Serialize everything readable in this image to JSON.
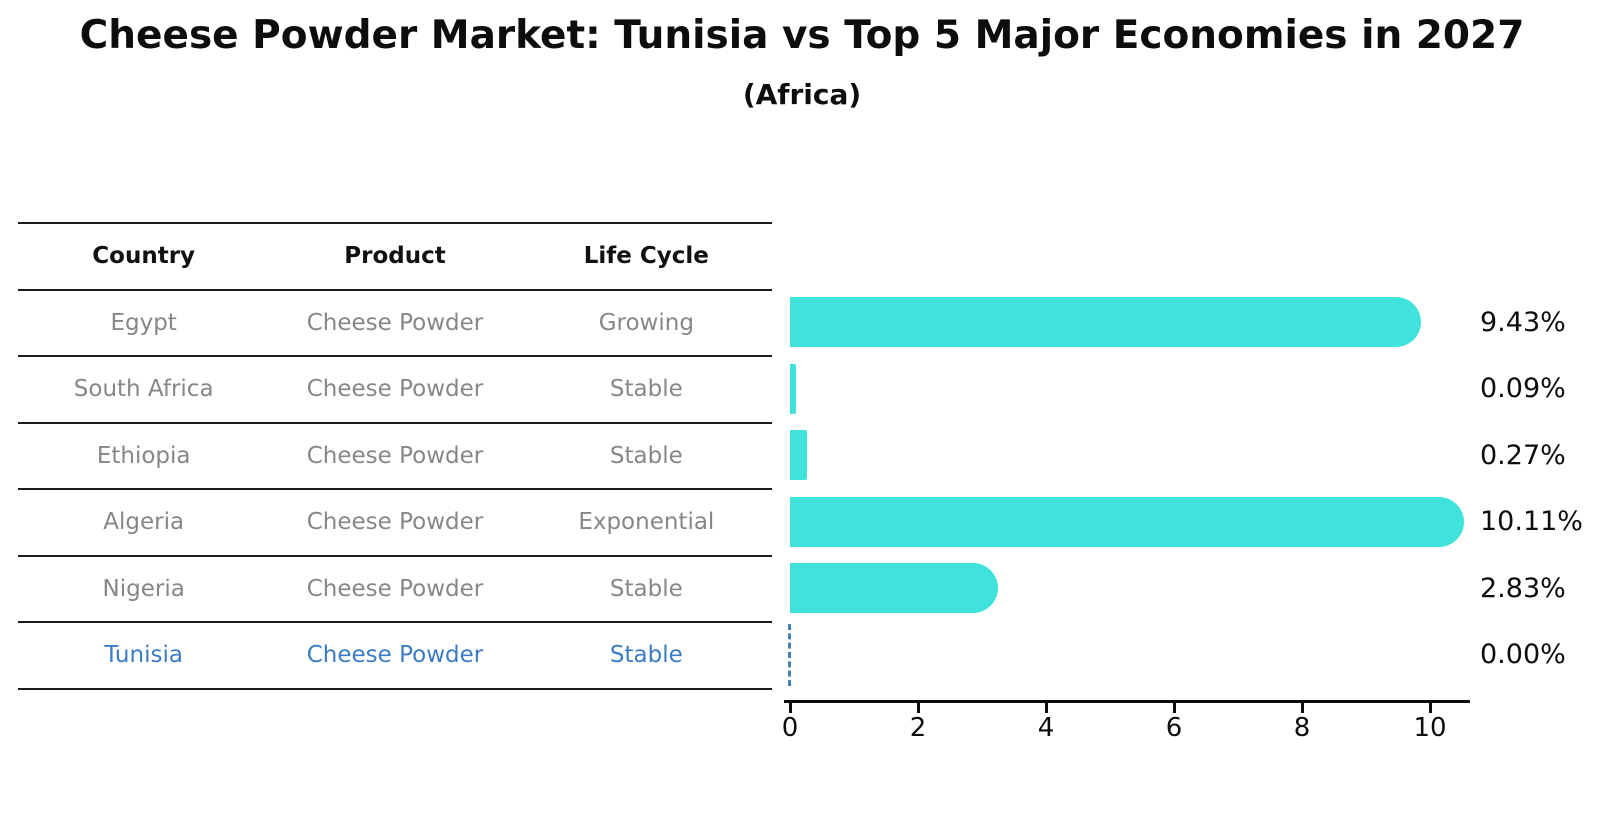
{
  "title": "Cheese Powder Market: Tunisia vs Top 5 Major Economies in 2027",
  "subtitle": "(Africa)",
  "chart_data": {
    "type": "bar",
    "orientation": "horizontal",
    "title": "Cheese Powder Market: Tunisia vs Top 5 Major Economies in 2027",
    "subtitle": "(Africa)",
    "table_columns": [
      "Country",
      "Product",
      "Life Cycle"
    ],
    "rows": [
      {
        "country": "Egypt",
        "product": "Cheese Powder",
        "life_cycle": "Growing",
        "value": 9.43,
        "value_label": "9.43%",
        "highlight": false
      },
      {
        "country": "South Africa",
        "product": "Cheese Powder",
        "life_cycle": "Stable",
        "value": 0.09,
        "value_label": "0.09%",
        "highlight": false
      },
      {
        "country": "Ethiopia",
        "product": "Cheese Powder",
        "life_cycle": "Stable",
        "value": 0.27,
        "value_label": "0.27%",
        "highlight": false
      },
      {
        "country": "Algeria",
        "product": "Cheese Powder",
        "life_cycle": "Exponential",
        "value": 10.11,
        "value_label": "10.11%",
        "highlight": false
      },
      {
        "country": "Nigeria",
        "product": "Cheese Powder",
        "life_cycle": "Stable",
        "value": 2.83,
        "value_label": "2.83%",
        "highlight": false
      },
      {
        "country": "Tunisia",
        "product": "Cheese Powder",
        "life_cycle": "Stable",
        "value": 0.0,
        "value_label": "0.00%",
        "highlight": true
      }
    ],
    "x_ticks": [
      0,
      2,
      4,
      6,
      8,
      10
    ],
    "x_range": [
      0,
      10.6
    ],
    "grid": false,
    "legend": false,
    "colors": {
      "bar": "#40E2DC",
      "highlight_text": "#3B7CC4",
      "zero_marker": "#4682B4",
      "row_text": "#878787",
      "header_text": "#111111",
      "axis": "#0d0d0d",
      "value_text": "#0d0d0d"
    }
  }
}
